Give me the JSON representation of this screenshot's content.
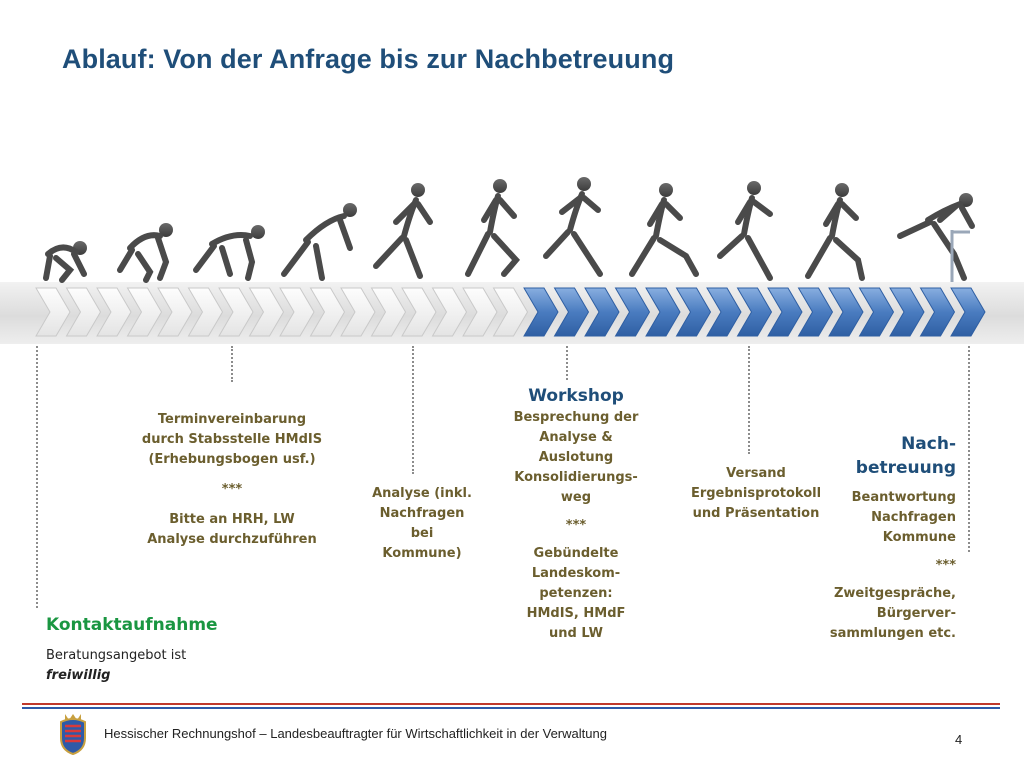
{
  "title": "Ablauf: Von der Anfrage bis zur Nachbetreuung",
  "steps": {
    "termin": {
      "line1": "Terminvereinbarung",
      "line2": "durch Stabsstelle HMdIS",
      "line3": "(Erhebungsbogen usf.)",
      "sep": "***",
      "line4": "Bitte an HRH, LW",
      "line5": "Analyse durchzuführen"
    },
    "analyse": {
      "line1": "Analyse (inkl.",
      "line2": "Nachfragen",
      "line3": "bei",
      "line4": "Kommune)"
    },
    "workshop": {
      "heading": "Workshop",
      "line1": "Besprechung der",
      "line2": "Analyse &",
      "line3": "Auslotung",
      "line4": "Konsolidierungs-",
      "line5": "weg",
      "sep": "***",
      "line6": "Gebündelte",
      "line7": "Landeskom-",
      "line8": "petenzen:",
      "line9": "HMdIS, HMdF",
      "line10": "und LW"
    },
    "versand": {
      "line1": "Versand",
      "line2": "Ergebnisprotokoll",
      "line3": "und Präsentation"
    },
    "nach": {
      "heading1": "Nach-",
      "heading2": "betreuung",
      "line1": "Beantwortung",
      "line2": "Nachfragen",
      "line3": "Kommune",
      "sep": "***",
      "line4": "Zweitgespräche,",
      "line5": "Bürgerver-",
      "line6": "sammlungen etc."
    },
    "kontakt": {
      "heading": "Kontaktaufnahme",
      "line1": "Beratungsangebot ist",
      "line2": "freiwillig"
    }
  },
  "footer": {
    "org": "Hessischer Rechnungshof",
    "dash": " – ",
    "role": "Landesbeauftragter für Wirtschaftlichkeit in der Verwaltung",
    "page": "4"
  },
  "colors": {
    "title": "#1f4e79",
    "chevron_gray": "#f3f3f3",
    "chevron_blue": "#4a7cc0",
    "green": "#1a9641",
    "text": "#6b5e2e",
    "footer_red": "#c0392b",
    "footer_blue": "#2e5aa8"
  },
  "icons": [
    "runner-figure-icon",
    "hurdle-icon",
    "hesse-crest-icon"
  ]
}
